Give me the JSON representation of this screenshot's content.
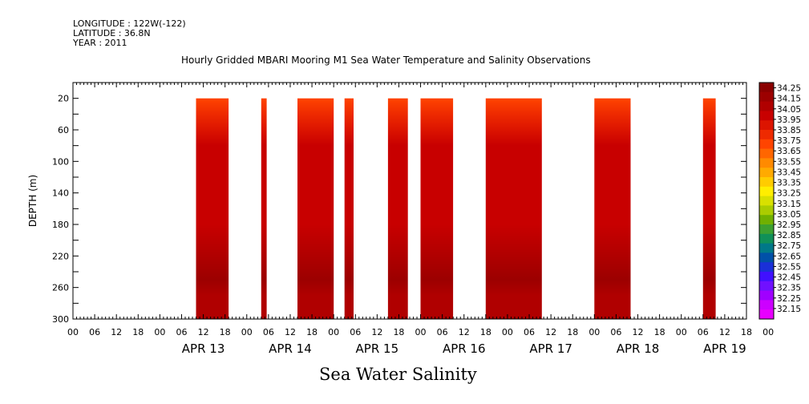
{
  "header": {
    "longitude": "LONGITUDE : 122W(-122)",
    "latitude": "LATITUDE : 36.8N",
    "year": "YEAR : 2011"
  },
  "bottom_title": "Sea Water Salinity",
  "chart_data": {
    "type": "heatmap",
    "title": "Hourly Gridded MBARI Mooring M1 Sea Water Temperature and Salinity Observations",
    "ylabel": "DEPTH (m)",
    "xlabel": "",
    "x_unit": "hours since 2011-04-12 00:00",
    "xlim": [
      0,
      186
    ],
    "ylim": [
      300,
      0
    ],
    "y_ticks": [
      20,
      60,
      100,
      140,
      180,
      220,
      260,
      300
    ],
    "hour_tick_labels": [
      "00",
      "06",
      "12",
      "18",
      "00",
      "06",
      "12",
      "18",
      "00",
      "06",
      "12",
      "18",
      "00",
      "06",
      "12",
      "18",
      "00",
      "06",
      "12",
      "18",
      "00",
      "06",
      "12",
      "18",
      "00",
      "06",
      "12",
      "18",
      "00",
      "06",
      "12",
      "18",
      "00"
    ],
    "day_labels": [
      "APR 13",
      "APR 14",
      "APR 15",
      "APR 16",
      "APR 17",
      "APR 18",
      "APR 19"
    ],
    "data_depth_range": [
      20,
      300
    ],
    "data_segments": [
      {
        "start": "2011-04-13 10:00",
        "end": "2011-04-13 19:00"
      },
      {
        "start": "2011-04-14 04:00",
        "end": "2011-04-14 05:30"
      },
      {
        "start": "2011-04-14 14:00",
        "end": "2011-04-14 24:00"
      },
      {
        "start": "2011-04-15 03:00",
        "end": "2011-04-15 05:30"
      },
      {
        "start": "2011-04-15 15:00",
        "end": "2011-04-15 20:30"
      },
      {
        "start": "2011-04-16 00:00",
        "end": "2011-04-16 09:00"
      },
      {
        "start": "2011-04-16 18:00",
        "end": "2011-04-17 09:30"
      },
      {
        "start": "2011-04-18 00:00",
        "end": "2011-04-18 10:00"
      },
      {
        "start": "2011-04-19 06:00",
        "end": "2011-04-19 09:30"
      }
    ],
    "depth_profile": [
      {
        "depth": 20,
        "value": 33.7
      },
      {
        "depth": 40,
        "value": 33.8
      },
      {
        "depth": 60,
        "value": 33.9
      },
      {
        "depth": 80,
        "value": 33.95
      },
      {
        "depth": 100,
        "value": 33.98
      },
      {
        "depth": 140,
        "value": 34.0
      },
      {
        "depth": 180,
        "value": 34.02
      },
      {
        "depth": 220,
        "value": 34.08
      },
      {
        "depth": 250,
        "value": 34.18
      },
      {
        "depth": 270,
        "value": 34.1
      },
      {
        "depth": 300,
        "value": 34.08
      }
    ],
    "colorbar": {
      "labels": [
        "34.25",
        "34.15",
        "34.05",
        "33.95",
        "33.85",
        "33.75",
        "33.65",
        "33.55",
        "33.45",
        "33.35",
        "33.25",
        "33.15",
        "33.05",
        "32.95",
        "32.85",
        "32.75",
        "32.65",
        "32.55",
        "32.45",
        "32.35",
        "32.25",
        "32.15"
      ],
      "colors": [
        "#8a0000",
        "#9c0000",
        "#b00000",
        "#c80000",
        "#dc1400",
        "#ee2a00",
        "#ff4400",
        "#ff6600",
        "#ff8a00",
        "#ffaa00",
        "#ffcc00",
        "#ffee00",
        "#d8e000",
        "#aacc00",
        "#70b000",
        "#3ca030",
        "#109058",
        "#007888",
        "#0050a8",
        "#1a30d8",
        "#4010ff",
        "#7010ff",
        "#a000ff",
        "#cc00ff",
        "#e800ff"
      ]
    },
    "grid": false,
    "legend": "right colorbar"
  }
}
